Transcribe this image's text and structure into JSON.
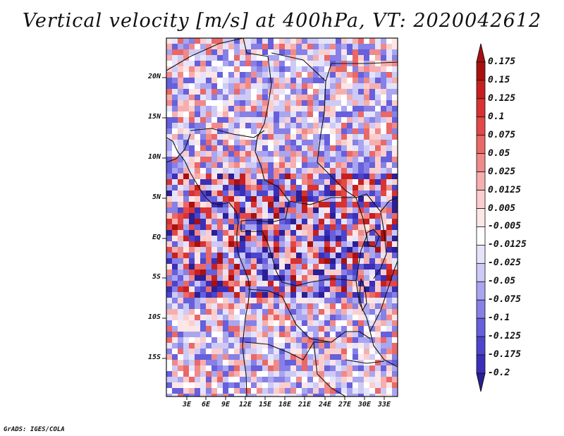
{
  "title": "Vertical velocity [m/s] at 400hPa, VT: 2020042612",
  "credit": "GrADS: IGES/COLA",
  "colors": {
    "negative_strong": "#3a2aa8",
    "negative_light": "#c9c6f5",
    "neutral": "#ffffff",
    "positive_light": "#f7c1c1",
    "positive_strong": "#b01c1c",
    "border_line": "#111111"
  },
  "map": {
    "lat_labels": [
      "20N",
      "15N",
      "10N",
      "5N",
      "EQ",
      "5S",
      "10S",
      "15S"
    ],
    "lon_labels": [
      "3E",
      "6E",
      "9E",
      "12E",
      "15E",
      "18E",
      "21E",
      "24E",
      "27E",
      "30E",
      "33E"
    ]
  },
  "colorbar": {
    "labels": [
      "0.175",
      "0.15",
      "0.125",
      "0.1",
      "0.075",
      "0.05",
      "0.025",
      "0.0125",
      "0.005",
      "-0.005",
      "-0.0125",
      "-0.025",
      "-0.05",
      "-0.075",
      "-0.1",
      "-0.125",
      "-0.175",
      "-0.2"
    ],
    "colors": [
      "#a81010",
      "#c42020",
      "#d83232",
      "#e24848",
      "#ea6868",
      "#f08a8a",
      "#f6aeae",
      "#fbcece",
      "#fde6e6",
      "#ffffff",
      "#e6e4fb",
      "#cdcaf6",
      "#aaa5ef",
      "#8780e6",
      "#6660dc",
      "#4c45cc",
      "#3a2fb8",
      "#2a1f96"
    ]
  }
}
